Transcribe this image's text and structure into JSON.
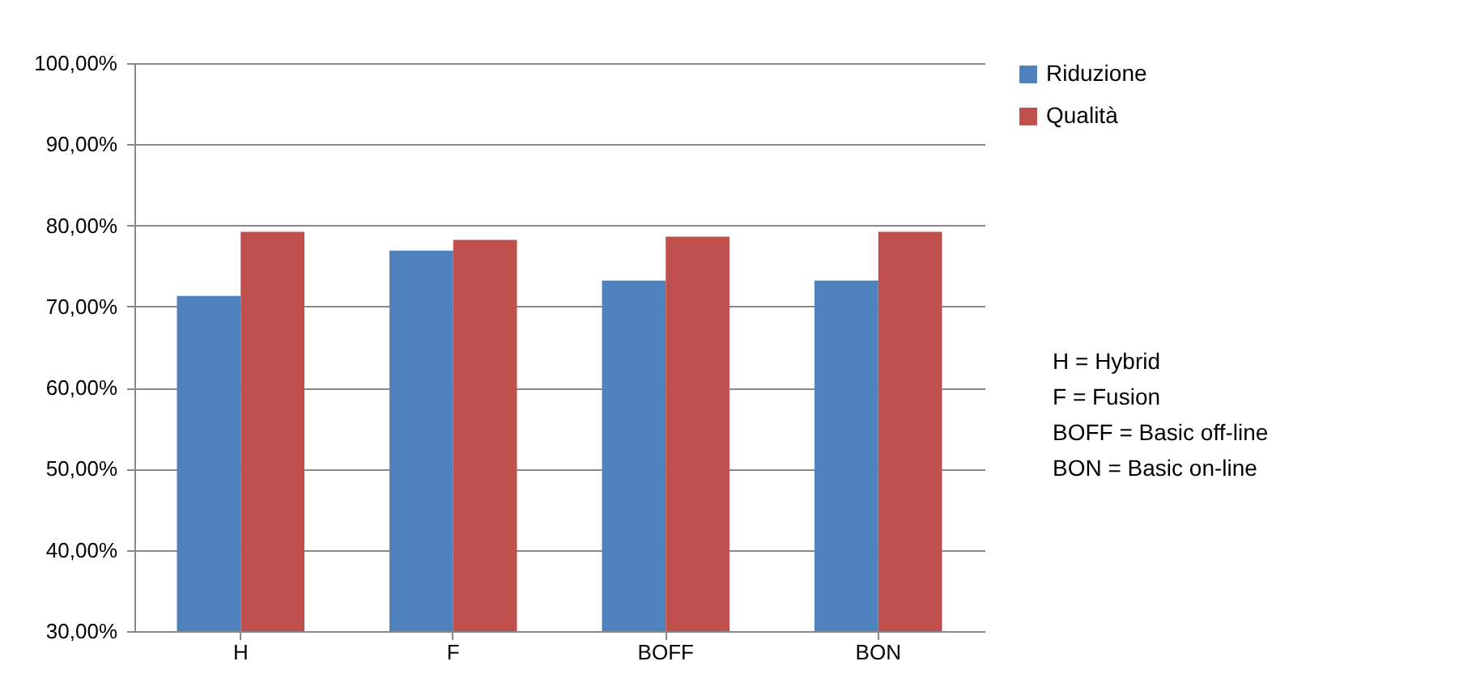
{
  "chart_data": {
    "type": "bar",
    "categories": [
      "H",
      "F",
      "BOFF",
      "BON"
    ],
    "series": [
      {
        "name": "Riduzione",
        "color": "#4f81bd",
        "values": [
          71.3,
          76.9,
          73.2,
          73.2
        ]
      },
      {
        "name": "Qualità",
        "color": "#c0504d",
        "values": [
          79.2,
          78.2,
          78.6,
          79.2
        ]
      }
    ],
    "ylim": [
      30,
      100
    ],
    "yticks": [
      {
        "value": 30,
        "label": "30,00%"
      },
      {
        "value": 40,
        "label": "40,00%"
      },
      {
        "value": 50,
        "label": "50,00%"
      },
      {
        "value": 60,
        "label": "60,00%"
      },
      {
        "value": 70,
        "label": "70,00%"
      },
      {
        "value": 80,
        "label": "80,00%"
      },
      {
        "value": 90,
        "label": "90,00%"
      },
      {
        "value": 100,
        "label": "100,00%"
      }
    ],
    "grid": "y",
    "legend": "right",
    "annotations": [
      "H = Hybrid",
      "F = Fusion",
      "BOFF = Basic off-line",
      "BON = Basic on-line"
    ]
  }
}
